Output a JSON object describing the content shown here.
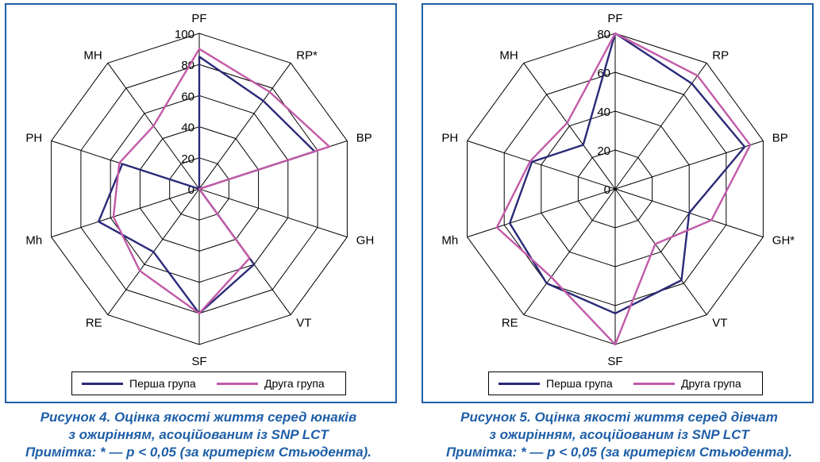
{
  "colors": {
    "group1": "#2a2a78",
    "group2": "#c25aa8",
    "frame": "#1f5fa8",
    "caption": "#1f5fa8",
    "grid": "#000000"
  },
  "legend": {
    "group1": "Перша група",
    "group2": "Друга група"
  },
  "figures": [
    {
      "caption": {
        "line1": "Рисунок 4. Оцінка якості життя серед юнаків",
        "line2": "з ожирінням, асоційованим із SNP LCT",
        "line3": "Примітка: * — р < 0,05 (за критерієм Стьюдента)."
      }
    },
    {
      "caption": {
        "line1": "Рисунок 5. Оцінка якості життя серед дівчат",
        "line2": "з ожирінням, асоційованим із SNP LCT",
        "line3": "Примітка: * — р < 0,05 (за критерієм Стьюдента)."
      }
    }
  ],
  "chart_data": [
    {
      "type": "radar",
      "categories": [
        "PF",
        "RP*",
        "BP",
        "GH",
        "VT",
        "SF",
        "RE",
        "Mh",
        "PH",
        "MH"
      ],
      "rlim": [
        0,
        100
      ],
      "ticks": [
        "0",
        "20",
        "40",
        "60",
        "80",
        "100"
      ],
      "grid": true,
      "legend": "bottom",
      "series": [
        {
          "name": "Перша група",
          "values": [
            85,
            70,
            78,
            0,
            60,
            80,
            50,
            68,
            52,
            0
          ]
        },
        {
          "name": "Друга група",
          "values": [
            90,
            77,
            88,
            0,
            55,
            80,
            65,
            58,
            54,
            50
          ]
        }
      ]
    },
    {
      "type": "radar",
      "categories": [
        "PF",
        "RP",
        "BP",
        "GH*",
        "VT",
        "SF",
        "RE",
        "Mh",
        "PH",
        "MH"
      ],
      "rlim": [
        0,
        80
      ],
      "ticks": [
        "0",
        "20",
        "40",
        "60",
        "80"
      ],
      "grid": true,
      "legend": "bottom",
      "series": [
        {
          "name": "Перша група",
          "values": [
            80,
            67,
            70,
            40,
            58,
            64,
            60,
            57,
            45,
            28
          ]
        },
        {
          "name": "Друга група",
          "values": [
            80,
            72,
            73,
            52,
            35,
            80,
            56,
            64,
            46,
            42
          ]
        }
      ]
    }
  ]
}
